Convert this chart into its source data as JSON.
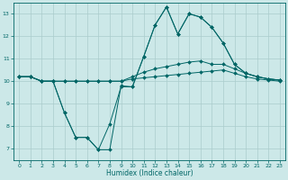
{
  "xlabel": "Humidex (Indice chaleur)",
  "bg_color": "#cce8e8",
  "line_color": "#006666",
  "grid_color": "#aacccc",
  "xlim": [
    -0.5,
    23.5
  ],
  "ylim": [
    6.5,
    13.5
  ],
  "xticks": [
    0,
    1,
    2,
    3,
    4,
    5,
    6,
    7,
    8,
    9,
    10,
    11,
    12,
    13,
    14,
    15,
    16,
    17,
    18,
    19,
    20,
    21,
    22,
    23
  ],
  "yticks": [
    7,
    8,
    9,
    10,
    11,
    12,
    13
  ],
  "line1_x": [
    0,
    1,
    2,
    3,
    4,
    5,
    6,
    7,
    8,
    9,
    10,
    11,
    12,
    13,
    14,
    15,
    16,
    17,
    18,
    19,
    20,
    21,
    22,
    23
  ],
  "line1_y": [
    10.2,
    10.2,
    10.0,
    10.0,
    10.0,
    10.0,
    10.0,
    10.0,
    10.0,
    10.0,
    10.1,
    10.15,
    10.2,
    10.25,
    10.3,
    10.35,
    10.4,
    10.45,
    10.5,
    10.35,
    10.2,
    10.1,
    10.05,
    10.0
  ],
  "line2_x": [
    0,
    1,
    2,
    3,
    4,
    5,
    6,
    7,
    8,
    9,
    10,
    11,
    12,
    13,
    14,
    15,
    16,
    17,
    18,
    19,
    20,
    21,
    22,
    23
  ],
  "line2_y": [
    10.2,
    10.2,
    10.0,
    10.0,
    10.0,
    10.0,
    10.0,
    10.0,
    10.0,
    10.0,
    10.2,
    10.4,
    10.55,
    10.65,
    10.75,
    10.85,
    10.9,
    10.75,
    10.75,
    10.55,
    10.35,
    10.2,
    10.1,
    10.05
  ],
  "line3_x": [
    0,
    1,
    2,
    3,
    4,
    5,
    6,
    7,
    8,
    9,
    10,
    11,
    12,
    13,
    14,
    15,
    16,
    17,
    18,
    19,
    20,
    21,
    22,
    23
  ],
  "line3_y": [
    10.2,
    10.2,
    10.0,
    10.0,
    8.6,
    7.5,
    7.5,
    6.95,
    6.95,
    9.8,
    9.75,
    11.1,
    12.5,
    13.3,
    12.1,
    13.0,
    12.85,
    12.4,
    11.7,
    10.75,
    10.35,
    10.2,
    10.1,
    10.05
  ],
  "line4_x": [
    0,
    1,
    2,
    3,
    4,
    5,
    6,
    7,
    8,
    9,
    10,
    11,
    12,
    13,
    14,
    15,
    16,
    17,
    18,
    19,
    20,
    21,
    22,
    23
  ],
  "line4_y": [
    10.2,
    10.2,
    10.0,
    10.0,
    8.6,
    7.5,
    7.5,
    6.95,
    8.1,
    9.75,
    9.75,
    11.1,
    12.5,
    13.3,
    12.1,
    13.0,
    12.85,
    12.4,
    11.7,
    10.75,
    10.35,
    10.2,
    10.1,
    10.05
  ],
  "markersize": 2.0
}
